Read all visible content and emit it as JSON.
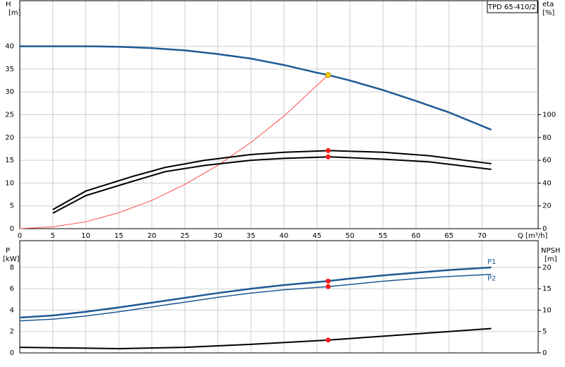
{
  "chart_data": [
    {
      "type": "line",
      "label_box": "TPD 65-410/2",
      "y_label": "H",
      "y_unit": "[m]",
      "y2_label": "eta",
      "y2_unit": "[%]",
      "x_label": "Q [m³/h]",
      "xlim": [
        0,
        78.5
      ],
      "xticks": [
        0,
        5,
        10,
        15,
        20,
        25,
        30,
        35,
        40,
        45,
        50,
        55,
        60,
        65,
        70
      ],
      "ylim": [
        0,
        50
      ],
      "yticks": [
        0,
        5,
        10,
        15,
        20,
        25,
        30,
        35,
        40
      ],
      "y2lim": [
        0,
        200
      ],
      "y2ticks": [
        0,
        20,
        40,
        60,
        80,
        100
      ],
      "grid": true,
      "series": [
        {
          "color": "#ff4a4a",
          "width": 1,
          "x": [
            0,
            5,
            10,
            15,
            20,
            25,
            30,
            35,
            40,
            46.7
          ],
          "values": [
            0,
            0.4,
            1.5,
            3.5,
            6.2,
            9.7,
            13.9,
            18.9,
            24.7,
            33.7
          ]
        },
        {
          "color": "#1f5a96",
          "width": 2.5,
          "x": [
            0,
            5,
            10,
            15,
            20,
            25,
            30,
            35,
            40,
            45,
            46.7,
            50,
            55,
            60,
            65,
            71.4
          ],
          "values": [
            40,
            40,
            40,
            39.9,
            39.6,
            39.1,
            38.3,
            37.3,
            35.9,
            34.2,
            33.7,
            32.5,
            30.4,
            28.0,
            25.5,
            21.7
          ]
        },
        {
          "color": "#000000",
          "width": 2,
          "axis": "y2",
          "x": [
            5,
            10,
            17,
            22,
            28,
            35,
            40,
            47,
            55,
            62,
            71.4
          ],
          "values": [
            16.7,
            33,
            45.7,
            53.7,
            60,
            65,
            67,
            68.5,
            67,
            64,
            57
          ]
        },
        {
          "color": "#000000",
          "width": 2,
          "axis": "y2",
          "x": [
            5,
            10,
            17,
            22,
            28,
            35,
            40,
            47,
            55,
            62,
            71.4
          ],
          "values": [
            13.6,
            29,
            41.4,
            50,
            55.5,
            60,
            61.7,
            63,
            61,
            58.6,
            52
          ]
        }
      ],
      "markers": [
        {
          "color": "#ffd700",
          "x": 46.7,
          "y": 33.7
        },
        {
          "color": "#ff1a1a",
          "axis": "y2",
          "x": 46.7,
          "y": 68.5
        },
        {
          "color": "#ff1a1a",
          "axis": "y2",
          "x": 46.7,
          "y": 63
        }
      ]
    },
    {
      "type": "line",
      "y_label": "P",
      "y_unit": "[kW]",
      "y2_label": "NPSH",
      "y2_unit": "[m]",
      "xlim": [
        0,
        78.5
      ],
      "xticks": [
        0,
        5,
        10,
        15,
        20,
        25,
        30,
        35,
        40,
        45,
        50,
        55,
        60,
        65,
        70
      ],
      "ylim": [
        0,
        10.5
      ],
      "yticks": [
        0,
        2,
        4,
        6,
        8
      ],
      "y2lim": [
        0,
        26.25
      ],
      "y2ticks": [
        0,
        5,
        10,
        15,
        20
      ],
      "grid": true,
      "series": [
        {
          "name": "P1",
          "color": "#1f5a96",
          "width": 2.5,
          "x": [
            0,
            5,
            10,
            15,
            20,
            25,
            30,
            35,
            40,
            46.7,
            50,
            55,
            60,
            65,
            71.4
          ],
          "values": [
            3.3,
            3.5,
            3.85,
            4.25,
            4.7,
            5.15,
            5.6,
            6.0,
            6.35,
            6.72,
            6.95,
            7.25,
            7.5,
            7.75,
            8.0
          ]
        },
        {
          "name": "P2",
          "color": "#1f5a96",
          "width": 1.5,
          "x": [
            0,
            5,
            10,
            15,
            20,
            25,
            30,
            35,
            40,
            46.7,
            50,
            55,
            60,
            65,
            71.4
          ],
          "values": [
            3.0,
            3.15,
            3.45,
            3.85,
            4.3,
            4.75,
            5.2,
            5.6,
            5.9,
            6.2,
            6.4,
            6.7,
            6.95,
            7.15,
            7.35
          ]
        },
        {
          "color": "#000000",
          "width": 2,
          "axis": "y2",
          "x": [
            0,
            5,
            15,
            25,
            35,
            46.7,
            55,
            65,
            71.4
          ],
          "values": [
            1.3,
            1.2,
            1.0,
            1.3,
            2.0,
            3.0,
            3.9,
            5.0,
            5.7
          ]
        }
      ],
      "markers": [
        {
          "color": "#ff1a1a",
          "x": 46.7,
          "y": 6.72
        },
        {
          "color": "#ff1a1a",
          "x": 46.7,
          "y": 6.2
        },
        {
          "color": "#ff1a1a",
          "axis": "y2",
          "x": 46.7,
          "y": 3.0
        }
      ]
    }
  ]
}
